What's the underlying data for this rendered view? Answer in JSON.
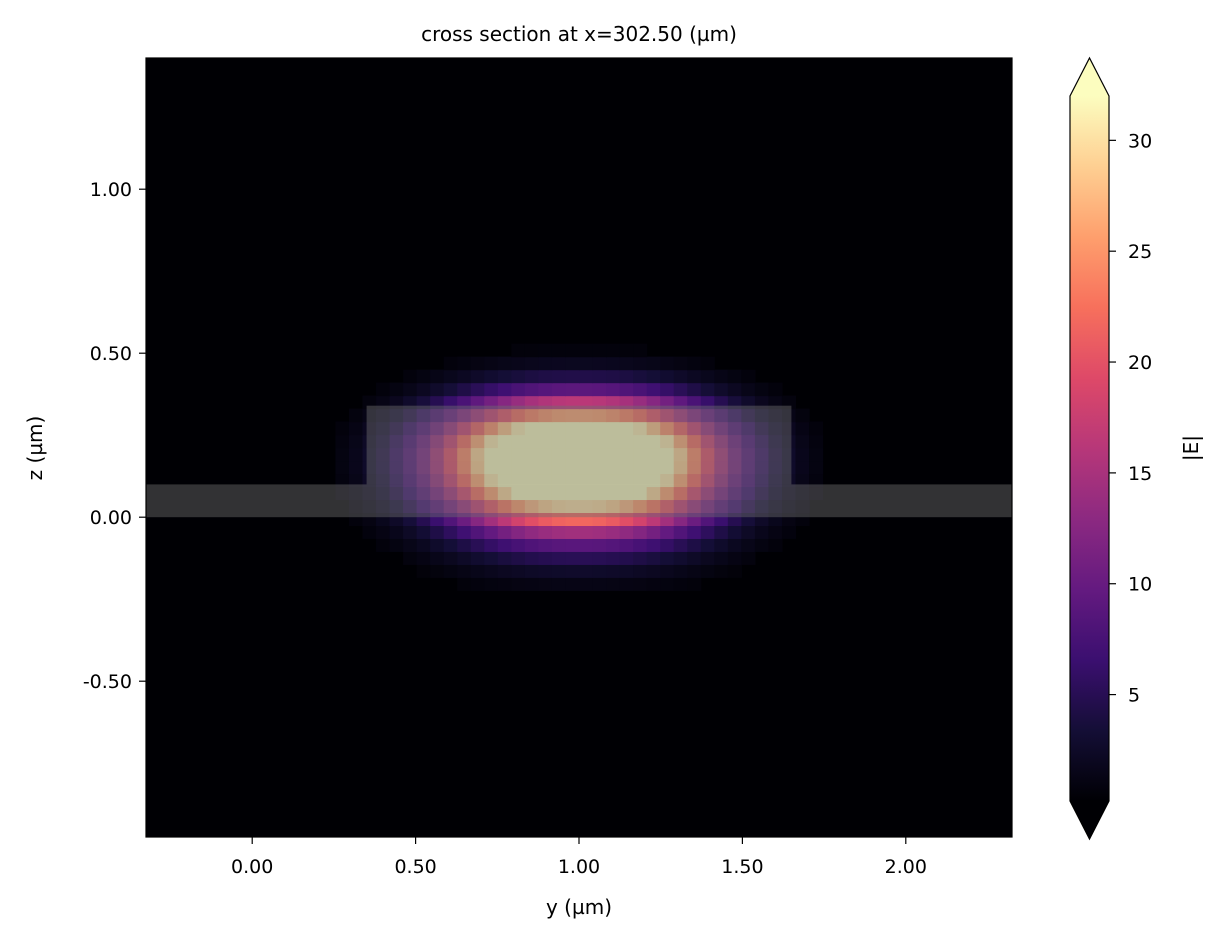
{
  "chart_data": {
    "type": "heatmap",
    "title": "cross section at x=302.50 (µm)",
    "xlabel": "y (µm)",
    "ylabel": "z (µm)",
    "xlim": [
      -0.325,
      2.325
    ],
    "ylim": [
      -0.975,
      1.4
    ],
    "xticks": [
      {
        "value": 0.0,
        "label": "0.00"
      },
      {
        "value": 0.5,
        "label": "0.50"
      },
      {
        "value": 1.0,
        "label": "1.00"
      },
      {
        "value": 1.5,
        "label": "1.50"
      },
      {
        "value": 2.0,
        "label": "2.00"
      }
    ],
    "yticks": [
      {
        "value": -0.5,
        "label": "-0.50"
      },
      {
        "value": 0.0,
        "label": "0.00"
      },
      {
        "value": 0.5,
        "label": "0.50"
      },
      {
        "value": 1.0,
        "label": "1.00"
      }
    ],
    "field": {
      "quantity": "|E|",
      "peak": 32,
      "center_y": 1.0,
      "center_z": 0.18,
      "grid_y": 64,
      "grid_z": 60
    },
    "colorbar": {
      "label": "|E|",
      "colormap": "magma",
      "min": 0.2,
      "max": 32,
      "extend": "both",
      "ticks": [
        {
          "value": 5,
          "label": "5"
        },
        {
          "value": 10,
          "label": "10"
        },
        {
          "value": 15,
          "label": "15"
        },
        {
          "value": 20,
          "label": "20"
        },
        {
          "value": 25,
          "label": "25"
        },
        {
          "value": 30,
          "label": "30"
        }
      ]
    },
    "structures": [
      {
        "name": "slab",
        "y": [
          -0.325,
          2.325
        ],
        "z": [
          0.0,
          0.1
        ]
      },
      {
        "name": "rib",
        "y": [
          0.35,
          1.65
        ],
        "z": [
          0.1,
          0.34
        ]
      }
    ],
    "structure_color": "#6e6e6e"
  }
}
